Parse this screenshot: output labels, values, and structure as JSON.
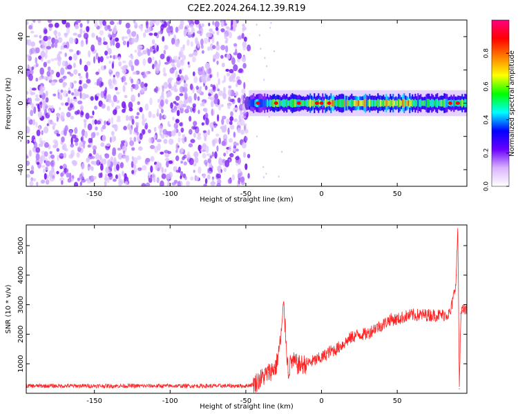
{
  "title": "C2E2.2024.264.12.39.R19",
  "chart_data": [
    {
      "type": "heatmap",
      "xlabel": "Height of straight line (km)",
      "ylabel": "Frequency (Hz)",
      "xlim": [
        -195,
        96
      ],
      "ylim": [
        -50,
        50
      ],
      "x_ticks": [
        -150,
        -100,
        -50,
        0,
        50
      ],
      "y_ticks": [
        -40,
        -20,
        0,
        20,
        40
      ],
      "colorbar": {
        "label": "Normalized spectral amplitude",
        "range": [
          0,
          1
        ],
        "ticks": [
          0.0,
          0.2,
          0.4,
          0.6,
          0.8
        ],
        "tick_labels": [
          "0.0",
          "0.2",
          "0.4",
          "0.6",
          "0.8"
        ],
        "colormap": [
          "#ffffff",
          "#d9b3ff",
          "#6a00ff",
          "#0000ff",
          "#00ffff",
          "#00ff00",
          "#ffff00",
          "#ff8000",
          "#ff0000",
          "#ff0080"
        ]
      },
      "regions": [
        {
          "name": "noise",
          "x_range": [
            -195,
            -48
          ],
          "f_range": [
            -50,
            50
          ],
          "amplitude": [
            0.0,
            0.15
          ]
        },
        {
          "name": "signal",
          "x_range": [
            -48,
            96
          ],
          "f_center": 0,
          "f_halfwidth": 3,
          "amplitude_peak": 0.9
        }
      ]
    },
    {
      "type": "line",
      "xlabel": "Height of straight line (km)",
      "ylabel": "SNR (10 * v/v)",
      "xlim": [
        -195,
        96
      ],
      "ylim": [
        0,
        5700
      ],
      "x_ticks": [
        -150,
        -100,
        -50,
        0,
        50
      ],
      "y_ticks": [
        1000,
        2000,
        3000,
        4000,
        5000
      ],
      "color": "#ff2020",
      "series": [
        {
          "x": [
            -195,
            -180,
            -160,
            -140,
            -120,
            -100,
            -80,
            -60,
            -50,
            -45,
            -40,
            -35,
            -30,
            -27,
            -25,
            -22,
            -20,
            -15,
            -10,
            -5,
            0,
            5,
            10,
            15,
            20,
            25,
            30,
            35,
            40,
            45,
            50,
            55,
            60,
            65,
            70,
            75,
            80,
            85,
            88,
            89,
            90,
            91,
            92,
            93,
            96
          ],
          "y": [
            250,
            250,
            250,
            250,
            250,
            250,
            250,
            250,
            250,
            300,
            500,
            700,
            900,
            1800,
            3000,
            700,
            1100,
            950,
            1000,
            1100,
            1200,
            1400,
            1500,
            1700,
            1900,
            2000,
            2000,
            2200,
            2300,
            2500,
            2500,
            2600,
            2650,
            2650,
            2650,
            2650,
            2650,
            2700,
            3500,
            4000,
            5700,
            150,
            2700,
            2800,
            2800
          ]
        }
      ]
    }
  ]
}
